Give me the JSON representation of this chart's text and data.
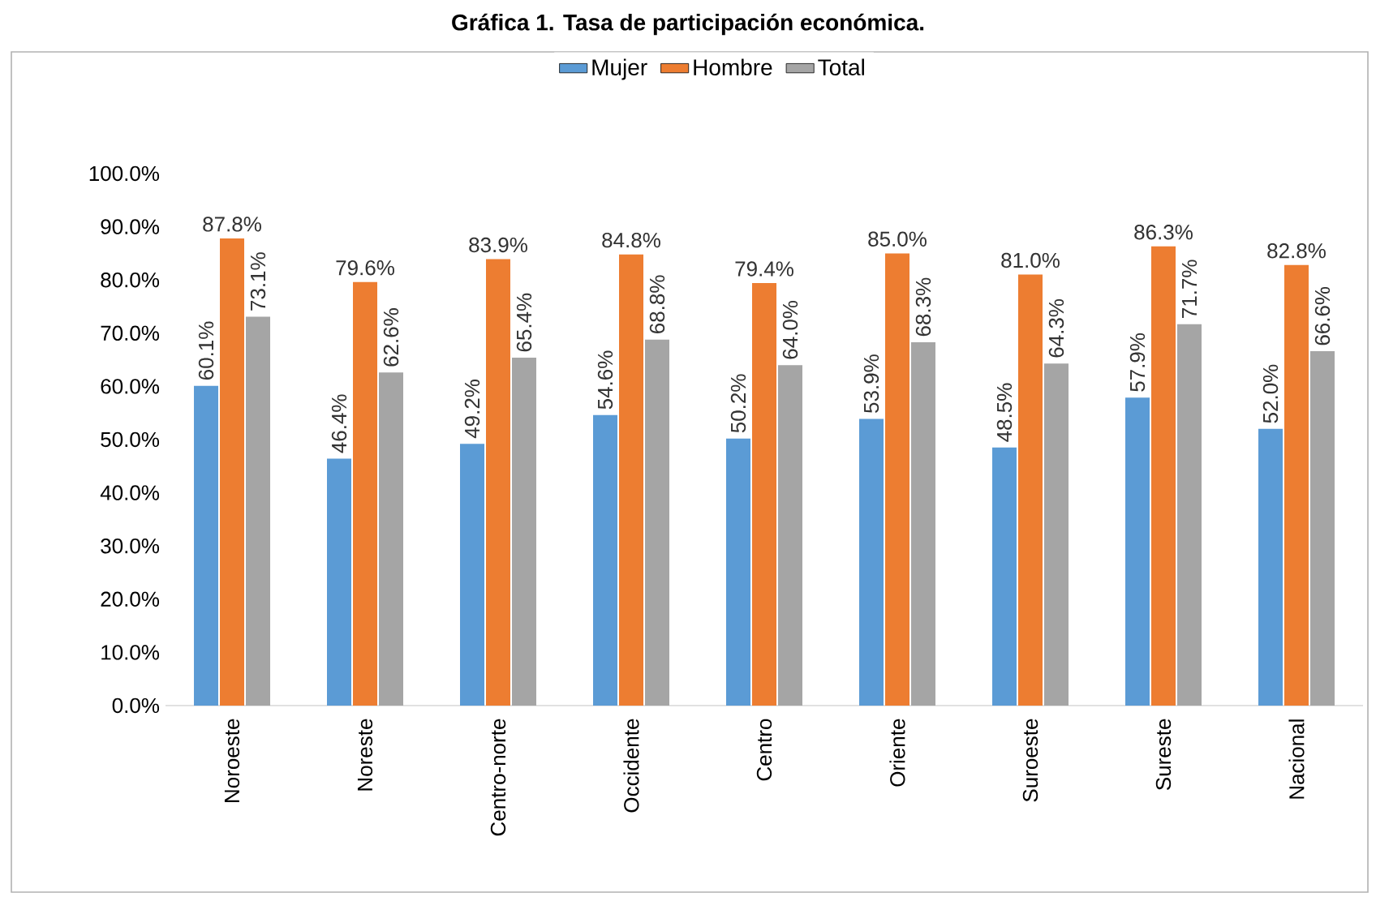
{
  "chart_data": {
    "type": "bar",
    "title": "Gráfica 1. Tasa de participación económica.",
    "categories": [
      "Noroeste",
      "Noreste",
      "Centro-norte",
      "Occidente",
      "Centro",
      "Oriente",
      "Suroeste",
      "Sureste",
      "Nacional"
    ],
    "series": [
      {
        "name": "Mujer",
        "color": "#5b9bd5",
        "values": [
          60.1,
          46.4,
          49.2,
          54.6,
          50.2,
          53.9,
          48.5,
          57.9,
          52.0
        ],
        "value_labels": [
          "60.1%",
          "46.4%",
          "49.2%",
          "54.6%",
          "50.2%",
          "53.9%",
          "48.5%",
          "57.9%",
          "52.0%"
        ]
      },
      {
        "name": "Hombre",
        "color": "#ed7d31",
        "values": [
          87.8,
          79.6,
          83.9,
          84.8,
          79.4,
          85.0,
          81.0,
          86.3,
          82.8
        ],
        "value_labels": [
          "87.8%",
          "79.6%",
          "83.9%",
          "84.8%",
          "79.4%",
          "85.0%",
          "81.0%",
          "86.3%",
          "82.8%"
        ]
      },
      {
        "name": "Total",
        "color": "#a5a5a5",
        "values": [
          73.1,
          62.6,
          65.4,
          68.8,
          64.0,
          68.3,
          64.3,
          71.7,
          66.6
        ],
        "value_labels": [
          "73.1%",
          "62.6%",
          "65.4%",
          "68.8%",
          "64.0%",
          "68.3%",
          "64.3%",
          "71.7%",
          "66.6%"
        ]
      }
    ],
    "ylim": [
      0,
      100
    ],
    "yticks": [
      {
        "value": 0,
        "label": "0.0%"
      },
      {
        "value": 10,
        "label": "10.0%"
      },
      {
        "value": 20,
        "label": "20.0%"
      },
      {
        "value": 30,
        "label": "30.0%"
      },
      {
        "value": 40,
        "label": "40.0%"
      },
      {
        "value": 50,
        "label": "50.0%"
      },
      {
        "value": 60,
        "label": "60.0%"
      },
      {
        "value": 70,
        "label": "70.0%"
      },
      {
        "value": 80,
        "label": "80.0%"
      },
      {
        "value": 90,
        "label": "90.0%"
      },
      {
        "value": 100,
        "label": "100.0%"
      }
    ],
    "legend": "top",
    "grid": false
  }
}
